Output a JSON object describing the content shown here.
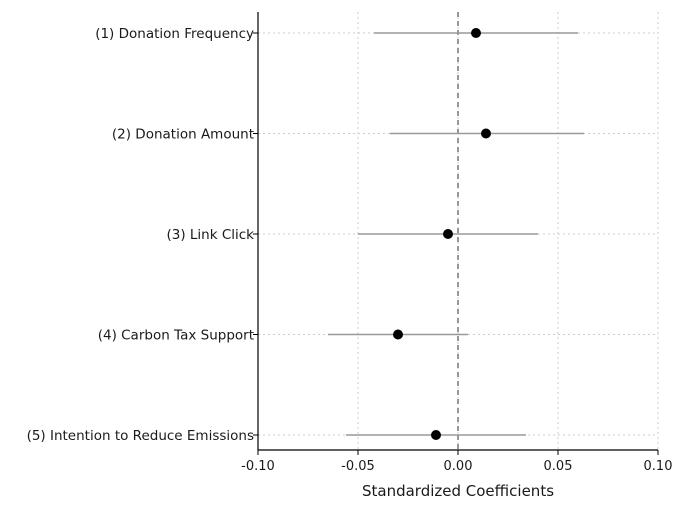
{
  "chart_data": {
    "type": "scatter",
    "subtype": "coefficient-plot-with-confidence-intervals",
    "title": "",
    "xlabel": "Standardized Coefficients",
    "ylabel": "",
    "xlim": [
      -0.1,
      0.1
    ],
    "xticks": [
      -0.1,
      -0.05,
      0.0,
      0.05,
      0.1
    ],
    "xtick_labels": [
      "-0.10",
      "-0.05",
      "0.00",
      "0.05",
      "0.10"
    ],
    "categories": [
      "(1) Donation Frequency",
      "(2) Donation Amount",
      "(3) Link Click",
      "(4) Carbon Tax Support",
      "(5) Intention to Reduce Emissions"
    ],
    "estimates": [
      0.009,
      0.014,
      -0.005,
      -0.03,
      -0.011
    ],
    "ci_lower": [
      -0.042,
      -0.034,
      -0.05,
      -0.065,
      -0.056
    ],
    "ci_upper": [
      0.06,
      0.063,
      0.04,
      0.005,
      0.034
    ],
    "reference_line": 0.0,
    "grid": true,
    "legend": "none",
    "colors": {
      "point": "#000000",
      "interval": "#999999",
      "reference": "#555555",
      "grid": "#cccccc",
      "axis": "#000000"
    }
  }
}
